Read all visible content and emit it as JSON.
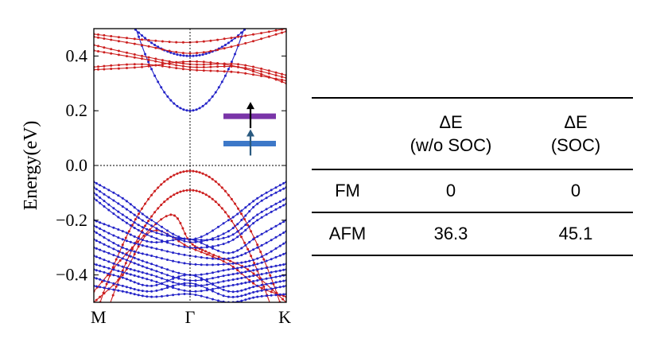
{
  "chart_data": {
    "type": "line",
    "subtype": "band-structure",
    "ylabel": "Energy(eV)",
    "xlabel": "",
    "x_labels": [
      "M",
      "Γ",
      "K"
    ],
    "x_tick_positions": [
      0,
      1,
      2
    ],
    "ylim": [
      -0.5,
      0.5
    ],
    "y_ticks": [
      0.4,
      0.2,
      0.0,
      -0.2,
      -0.4
    ],
    "y_tick_labels": [
      "0.4",
      "0.2",
      "0.0",
      "−0.2",
      "−0.4"
    ],
    "fermi_level": 0.0,
    "colors": {
      "red": "#cc1f1f",
      "blue": "#2424c8",
      "purple": "#7a35a8",
      "steel": "#3d78c8"
    },
    "legend_icons": [
      {
        "name": "spin-up-band-purple",
        "color": "#7a35a8",
        "energy": 0.18,
        "arrow": "up"
      },
      {
        "name": "spin-up-band-blue",
        "color": "#3d78c8",
        "energy": 0.08,
        "arrow": "up"
      }
    ],
    "series": [
      {
        "name": "cb-blue-1",
        "color": "blue",
        "type": "parabola",
        "center": 0.2,
        "curvature": 0.95
      },
      {
        "name": "cb-blue-2",
        "color": "blue",
        "type": "parabola",
        "center": 0.4,
        "curvature": 0.3
      },
      {
        "name": "cb-red-flat-1",
        "color": "red",
        "x": [
          0,
          0.5,
          1,
          1.5,
          2
        ],
        "y": [
          0.48,
          0.46,
          0.45,
          0.47,
          0.5
        ]
      },
      {
        "name": "cb-red-flat-2",
        "color": "red",
        "x": [
          0,
          0.5,
          1,
          1.5,
          2
        ],
        "y": [
          0.47,
          0.44,
          0.41,
          0.44,
          0.49
        ]
      },
      {
        "name": "cb-red-flat-3",
        "color": "red",
        "x": [
          0,
          0.5,
          1,
          1.5,
          2
        ],
        "y": [
          0.44,
          0.4,
          0.37,
          0.37,
          0.33
        ]
      },
      {
        "name": "cb-red-flat-4",
        "color": "red",
        "x": [
          0,
          0.5,
          1,
          1.5,
          2
        ],
        "y": [
          0.42,
          0.39,
          0.36,
          0.36,
          0.32
        ]
      },
      {
        "name": "cb-red-flat-5",
        "color": "red",
        "x": [
          0,
          0.5,
          1,
          1.5,
          2
        ],
        "y": [
          0.36,
          0.37,
          0.35,
          0.34,
          0.31
        ]
      },
      {
        "name": "cb-red-flat-6",
        "color": "red",
        "x": [
          0,
          0.5,
          1,
          1.5,
          2
        ],
        "y": [
          0.35,
          0.36,
          0.38,
          0.36,
          0.3
        ]
      },
      {
        "name": "vb-red-1",
        "color": "red",
        "type": "parabola",
        "center": -0.02,
        "curvature": -0.55
      },
      {
        "name": "vb-red-2",
        "color": "red",
        "type": "parabola",
        "center": -0.09,
        "curvature": -0.6
      },
      {
        "name": "vb-red-3",
        "color": "red",
        "x": [
          0,
          0.4,
          0.8,
          1,
          1.2,
          1.6,
          2
        ],
        "y": [
          -0.46,
          -0.3,
          -0.18,
          -0.28,
          -0.32,
          -0.38,
          -0.5
        ]
      },
      {
        "name": "vb-red-4",
        "color": "red",
        "x": [
          0,
          0.3,
          0.6,
          1,
          1.4,
          1.7,
          2
        ],
        "y": [
          -0.5,
          -0.4,
          -0.24,
          -0.3,
          -0.36,
          -0.44,
          -0.48
        ]
      },
      {
        "name": "vb-blue-1",
        "color": "blue",
        "x": [
          0,
          0.3,
          0.6,
          1,
          1.4,
          1.7,
          2
        ],
        "y": [
          -0.06,
          -0.12,
          -0.2,
          -0.27,
          -0.2,
          -0.12,
          -0.06
        ]
      },
      {
        "name": "vb-blue-2",
        "color": "blue",
        "x": [
          0,
          0.3,
          0.6,
          1,
          1.4,
          1.7,
          2
        ],
        "y": [
          -0.08,
          -0.15,
          -0.22,
          -0.28,
          -0.24,
          -0.14,
          -0.08
        ]
      },
      {
        "name": "vb-blue-3",
        "color": "blue",
        "x": [
          0,
          0.3,
          0.6,
          1,
          1.4,
          1.7,
          2
        ],
        "y": [
          -0.1,
          -0.18,
          -0.24,
          -0.27,
          -0.26,
          -0.18,
          -0.12
        ]
      },
      {
        "name": "vb-blue-4",
        "color": "blue",
        "x": [
          0,
          0.3,
          0.6,
          1,
          1.4,
          1.7,
          2
        ],
        "y": [
          -0.12,
          -0.2,
          -0.26,
          -0.3,
          -0.28,
          -0.2,
          -0.14
        ]
      },
      {
        "name": "vb-blue-5",
        "color": "blue",
        "x": [
          0,
          0.3,
          0.6,
          1,
          1.4,
          1.7,
          2
        ],
        "y": [
          -0.2,
          -0.24,
          -0.28,
          -0.27,
          -0.32,
          -0.26,
          -0.2
        ]
      },
      {
        "name": "vb-blue-6",
        "color": "blue",
        "x": [
          0,
          0.3,
          0.6,
          1,
          1.4,
          1.7,
          2
        ],
        "y": [
          -0.22,
          -0.27,
          -0.3,
          -0.33,
          -0.34,
          -0.3,
          -0.24
        ]
      },
      {
        "name": "vb-blue-7",
        "color": "blue",
        "x": [
          0,
          0.3,
          0.6,
          1,
          1.4,
          1.7,
          2
        ],
        "y": [
          -0.24,
          -0.3,
          -0.33,
          -0.36,
          -0.36,
          -0.34,
          -0.28
        ]
      },
      {
        "name": "vb-blue-8",
        "color": "blue",
        "x": [
          0,
          0.3,
          0.6,
          1,
          1.4,
          1.7,
          2
        ],
        "y": [
          -0.27,
          -0.32,
          -0.36,
          -0.4,
          -0.38,
          -0.36,
          -0.32
        ]
      },
      {
        "name": "vb-blue-9",
        "color": "blue",
        "x": [
          0,
          0.3,
          0.6,
          1,
          1.4,
          1.7,
          2
        ],
        "y": [
          -0.3,
          -0.34,
          -0.38,
          -0.42,
          -0.4,
          -0.38,
          -0.36
        ]
      },
      {
        "name": "vb-blue-10",
        "color": "blue",
        "x": [
          0,
          0.3,
          0.6,
          1,
          1.4,
          1.7,
          2
        ],
        "y": [
          -0.33,
          -0.37,
          -0.4,
          -0.44,
          -0.42,
          -0.4,
          -0.38
        ]
      },
      {
        "name": "vb-blue-11",
        "color": "blue",
        "x": [
          0,
          0.3,
          0.6,
          1,
          1.4,
          1.7,
          2
        ],
        "y": [
          -0.36,
          -0.39,
          -0.42,
          -0.46,
          -0.44,
          -0.42,
          -0.4
        ]
      },
      {
        "name": "vb-blue-12",
        "color": "blue",
        "x": [
          0,
          0.3,
          0.6,
          1,
          1.4,
          1.7,
          2
        ],
        "y": [
          -0.38,
          -0.41,
          -0.44,
          -0.4,
          -0.46,
          -0.44,
          -0.42
        ]
      },
      {
        "name": "vb-blue-13",
        "color": "blue",
        "x": [
          0,
          0.3,
          0.6,
          1,
          1.4,
          1.7,
          2
        ],
        "y": [
          -0.41,
          -0.44,
          -0.46,
          -0.43,
          -0.48,
          -0.46,
          -0.44
        ]
      },
      {
        "name": "vb-blue-14",
        "color": "blue",
        "x": [
          0,
          0.3,
          0.6,
          1,
          1.4,
          1.7,
          2
        ],
        "y": [
          -0.44,
          -0.46,
          -0.48,
          -0.47,
          -0.5,
          -0.48,
          -0.47
        ]
      }
    ]
  },
  "table": {
    "headers": [
      {
        "line1": "",
        "line2": ""
      },
      {
        "line1": "ΔE",
        "line2": "(w/o SOC)"
      },
      {
        "line1": "ΔE",
        "line2": "(SOC)"
      }
    ],
    "rows": [
      {
        "label": "FM",
        "nosoc": "0",
        "soc": "0"
      },
      {
        "label": "AFM",
        "nosoc": "36.3",
        "soc": "45.1"
      }
    ]
  }
}
